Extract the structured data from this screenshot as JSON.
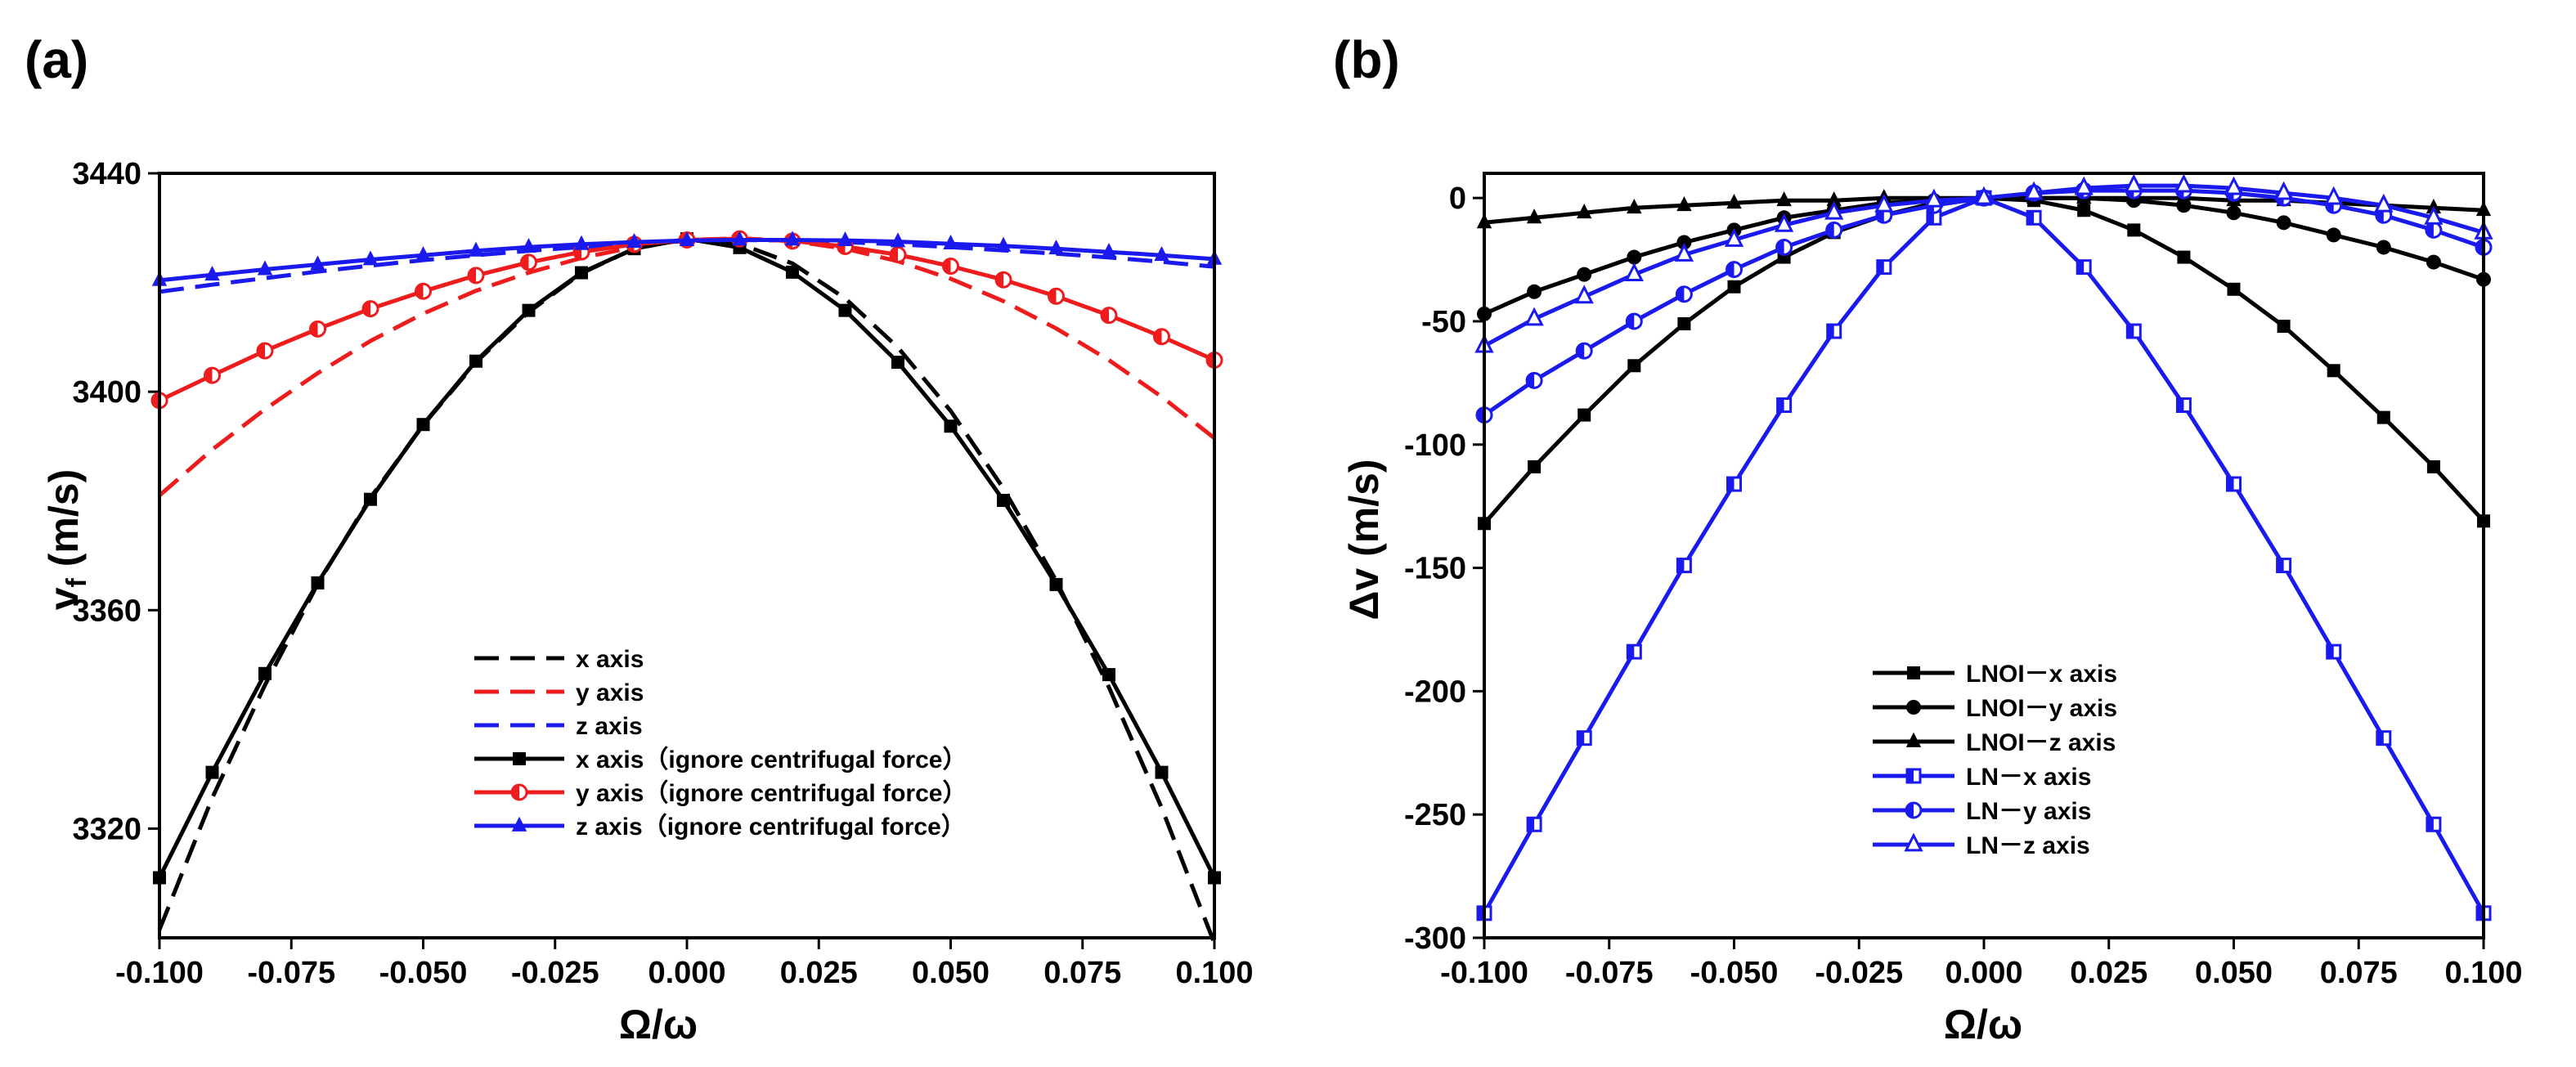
{
  "chart_data": [
    {
      "type": "line",
      "panel_label": "(a)",
      "xlabel": "Ω/ω",
      "ylabel_main": "v",
      "ylabel_sub": "f",
      "ylabel_unit": " (m/s)",
      "xlim": [
        -0.1,
        0.1
      ],
      "ylim": [
        3300,
        3440
      ],
      "xticks": [
        -0.1,
        -0.075,
        -0.05,
        -0.025,
        0.0,
        0.025,
        0.05,
        0.075,
        0.1
      ],
      "xtick_labels": [
        "-0.100",
        "-0.075",
        "-0.050",
        "-0.025",
        "0.000",
        "0.025",
        "0.050",
        "0.075",
        "0.100"
      ],
      "yticks": [
        3320,
        3360,
        3400,
        3440
      ],
      "ytick_labels": [
        "3320",
        "3360",
        "3400",
        "3440"
      ],
      "legend_position": "lower-center",
      "x": [
        -0.1,
        -0.09,
        -0.08,
        -0.07,
        -0.06,
        -0.05,
        -0.04,
        -0.03,
        -0.02,
        -0.01,
        0.0,
        0.01,
        0.02,
        0.03,
        0.04,
        0.05,
        0.06,
        0.07,
        0.08,
        0.09,
        0.1
      ],
      "series": [
        {
          "name": "x axis",
          "color": "#000000",
          "dash": "dash",
          "marker": "none",
          "values": [
            3301.5,
            3325.6,
            3346.3,
            3364.8,
            3380.6,
            3393.9,
            3405.4,
            3414.6,
            3421.7,
            3426.2,
            3428,
            3427.1,
            3423.5,
            3417.1,
            3408.1,
            3396.5,
            3382.3,
            3365.4,
            3345.9,
            3323.8,
            3299
          ]
        },
        {
          "name": "y axis",
          "color": "#ee1c1c",
          "dash": "dash",
          "marker": "none",
          "values": [
            3381,
            3389.4,
            3396.8,
            3403.4,
            3409.3,
            3414.3,
            3418.5,
            3421.8,
            3424.5,
            3426.5,
            3427.8,
            3428.1,
            3427.6,
            3426.2,
            3423.9,
            3420.7,
            3416.6,
            3411.6,
            3405.8,
            3399.1,
            3391.5
          ]
        },
        {
          "name": "z axis",
          "color": "#1a1aee",
          "dash": "dash",
          "marker": "none",
          "values": [
            3418.3,
            3419.6,
            3420.8,
            3422,
            3423.1,
            3424.1,
            3425,
            3425.8,
            3426.5,
            3427.1,
            3427.6,
            3427.8,
            3427.7,
            3427.4,
            3427,
            3426.5,
            3425.9,
            3425.3,
            3424.6,
            3423.8,
            3422.9
          ]
        },
        {
          "name": "x axis（ignore centrifugal force）",
          "color": "#000000",
          "dash": "solid",
          "marker": "square",
          "values": [
            3311,
            3330.3,
            3348.4,
            3365,
            3380.3,
            3394,
            3405.6,
            3414.9,
            3421.8,
            3426.2,
            3428,
            3426.4,
            3421.9,
            3414.9,
            3405.4,
            3393.7,
            3380.1,
            3364.7,
            3348.2,
            3330.3,
            3311
          ]
        },
        {
          "name": "y axis（ignore centrifugal force）",
          "color": "#ee1c1c",
          "dash": "solid",
          "marker": "halfcircle",
          "values": [
            3398.4,
            3403,
            3407.5,
            3411.5,
            3415.2,
            3418.4,
            3421.3,
            3423.7,
            3425.6,
            3427,
            3427.8,
            3428,
            3427.6,
            3426.6,
            3425.1,
            3423,
            3420.5,
            3417.5,
            3414,
            3410.1,
            3405.8
          ]
        },
        {
          "name": "z axis（ignore centrifugal force）",
          "color": "#1a1aee",
          "dash": "solid",
          "marker": "triangle",
          "values": [
            3420.4,
            3421.4,
            3422.4,
            3423.3,
            3424.2,
            3425,
            3425.8,
            3426.5,
            3427,
            3427.4,
            3427.7,
            3427.8,
            3427.8,
            3427.7,
            3427.5,
            3427.1,
            3426.7,
            3426.2,
            3425.6,
            3425,
            3424.3
          ]
        }
      ]
    },
    {
      "type": "line",
      "panel_label": "(b)",
      "xlabel": "Ω/ω",
      "ylabel_main": "Δv (m/s)",
      "xlim": [
        -0.1,
        0.1
      ],
      "ylim": [
        -300,
        10
      ],
      "xticks": [
        -0.1,
        -0.075,
        -0.05,
        -0.025,
        0.0,
        0.025,
        0.05,
        0.075,
        0.1
      ],
      "xtick_labels": [
        "-0.100",
        "-0.075",
        "-0.050",
        "-0.025",
        "0.000",
        "0.025",
        "0.050",
        "0.075",
        "0.100"
      ],
      "yticks": [
        0,
        -50,
        -100,
        -150,
        -200,
        -250,
        -300
      ],
      "ytick_labels": [
        "0",
        "-50",
        "-100",
        "-150",
        "-200",
        "-250",
        "-300"
      ],
      "legend_position": "lower-center",
      "x": [
        -0.1,
        -0.09,
        -0.08,
        -0.07,
        -0.06,
        -0.05,
        -0.04,
        -0.03,
        -0.02,
        -0.01,
        0.0,
        0.01,
        0.02,
        0.03,
        0.04,
        0.05,
        0.06,
        0.07,
        0.08,
        0.09,
        0.1
      ],
      "series": [
        {
          "name": "LNOI－x axis",
          "color": "#000000",
          "marker": "square",
          "values": [
            -132,
            -109,
            -88,
            -68,
            -51,
            -36,
            -24,
            -14,
            -7,
            -2,
            0,
            -1,
            -5,
            -13,
            -24,
            -37,
            -52,
            -70,
            -89,
            -109,
            -131
          ]
        },
        {
          "name": "LNOI－y axis",
          "color": "#000000",
          "marker": "circle",
          "values": [
            -47,
            -38,
            -31,
            -24,
            -18,
            -13,
            -8,
            -5,
            -2,
            -1,
            0,
            0,
            0,
            -1,
            -3,
            -6,
            -10,
            -15,
            -20,
            -26,
            -33
          ]
        },
        {
          "name": "LNOI－z axis",
          "color": "#000000",
          "marker": "triangle",
          "values": [
            -10,
            -8,
            -6,
            -4,
            -3,
            -2,
            -1,
            -1,
            0,
            0,
            0,
            0,
            0,
            0,
            0,
            -1,
            -1,
            -2,
            -3,
            -4,
            -5
          ]
        },
        {
          "name": "LN－x axis",
          "color": "#1a1aee",
          "marker": "halfsquare",
          "values": [
            -290,
            -254,
            -219,
            -184,
            -149,
            -116,
            -84,
            -54,
            -28,
            -8,
            0,
            -8,
            -28,
            -54,
            -84,
            -116,
            -149,
            -184,
            -219,
            -254,
            -290
          ]
        },
        {
          "name": "LN－y axis",
          "color": "#1a1aee",
          "marker": "halfcircle",
          "values": [
            -88,
            -74,
            -62,
            -50,
            -39,
            -29,
            -20,
            -13,
            -7,
            -3,
            0,
            2,
            3,
            3,
            3,
            2,
            0,
            -3,
            -7,
            -13,
            -20
          ]
        },
        {
          "name": "LN－z axis",
          "color": "#1a1aee",
          "marker": "opentriangle",
          "values": [
            -60,
            -49,
            -40,
            -31,
            -23,
            -17,
            -11,
            -6,
            -3,
            -1,
            0,
            2,
            4,
            5,
            5,
            4,
            2,
            0,
            -3,
            -8,
            -14
          ]
        }
      ]
    }
  ]
}
